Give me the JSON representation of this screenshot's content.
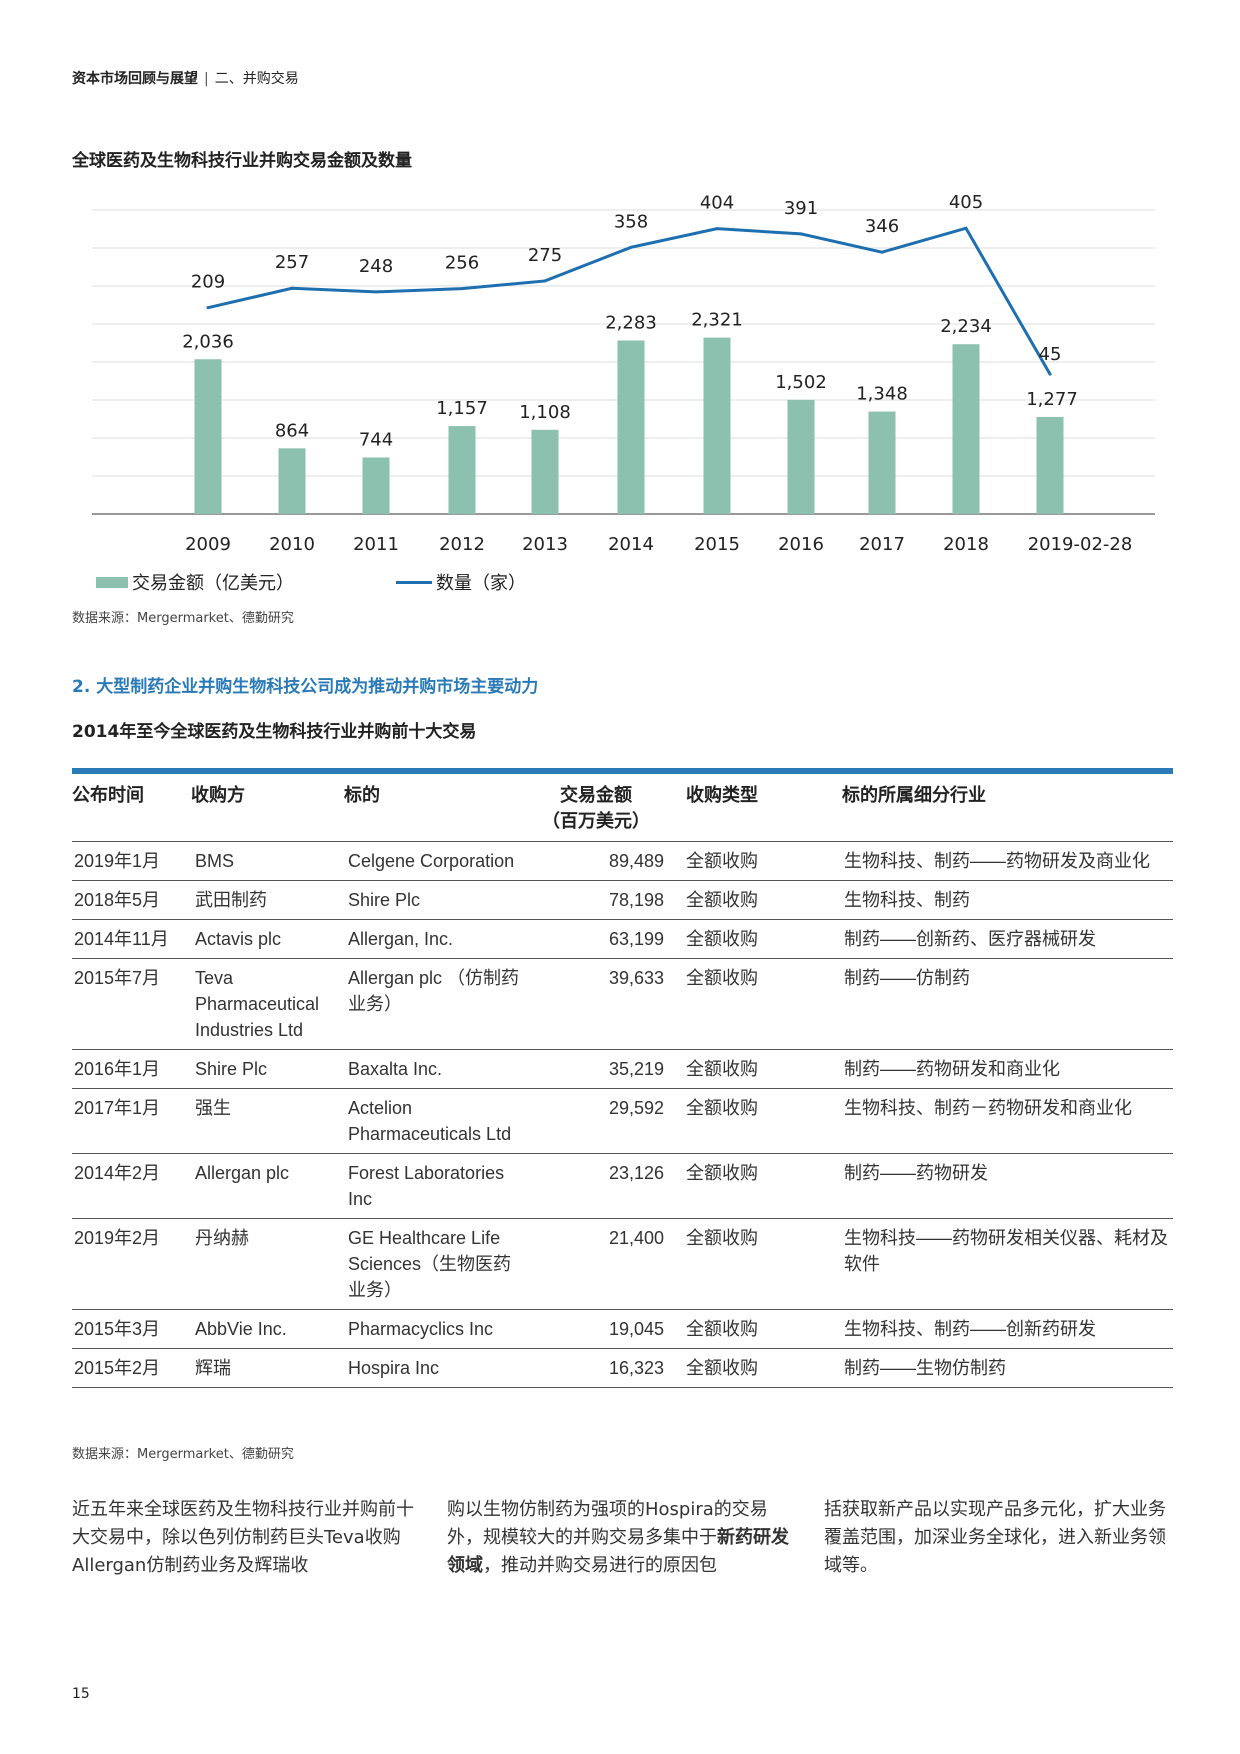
{
  "header": {
    "section": "资本市场回顾与展望",
    "separator": "|",
    "subsection": "二、并购交易"
  },
  "chart_data": {
    "type": "bar+line",
    "title": "全球医药及生物科技行业并购交易金额及数量",
    "categories": [
      "2009",
      "2010",
      "2011",
      "2012",
      "2013",
      "2014",
      "2015",
      "2016",
      "2017",
      "2018",
      "2019-02-28"
    ],
    "series": [
      {
        "name": "交易金额（亿美元）",
        "type": "bar",
        "axis": "left",
        "color": "#8bc1ae",
        "values": [
          2036,
          864,
          744,
          1157,
          1108,
          2283,
          2321,
          1502,
          1348,
          2234,
          1277
        ],
        "labels": [
          "2,036",
          "864",
          "744",
          "1,157",
          "1,108",
          "2,283",
          "2,321",
          "1,502",
          "1,348",
          "2,234",
          "1,277"
        ]
      },
      {
        "name": "数量（家）",
        "type": "line",
        "axis": "right",
        "color": "#1e6fb0",
        "values": [
          209,
          257,
          248,
          256,
          275,
          358,
          404,
          391,
          346,
          405,
          45
        ],
        "labels": [
          "209",
          "257",
          "248",
          "256",
          "275",
          "358",
          "404",
          "391",
          "346",
          "405",
          "45"
        ]
      }
    ],
    "ylim": [
      0,
      4000
    ],
    "y2lim": [
      -300,
      450
    ],
    "grid": true,
    "legend_placement": "bottom-left",
    "source": "数据来源：Mergermarket、德勤研究"
  },
  "section_heading": "2. 大型制药企业并购生物科技公司成为推动并购市场主要动力",
  "table": {
    "title": "2014年至今全球医药及生物科技行业并购前十大交易",
    "headers": [
      "公布时间",
      "收购方",
      "标的",
      "交易金额\n（百万美元）",
      "收购类型",
      "标的所属细分行业"
    ],
    "rows": [
      [
        "2019年1月",
        "BMS",
        "Celgene Corporation",
        "89,489",
        "全额收购",
        "生物科技、制药——药物研发及商业化"
      ],
      [
        "2018年5月",
        "武田制药",
        "Shire Plc",
        "78,198",
        "全额收购",
        "生物科技、制药"
      ],
      [
        "2014年11月",
        "Actavis plc",
        "Allergan, Inc.",
        "63,199",
        "全额收购",
        "制药——创新药、医疗器械研发"
      ],
      [
        "2015年7月",
        "Teva Pharmaceutical Industries Ltd",
        "Allergan plc （仿制药业务）",
        "39,633",
        "全额收购",
        "制药——仿制药"
      ],
      [
        "2016年1月",
        "Shire Plc",
        "Baxalta Inc.",
        "35,219",
        "全额收购",
        "制药——药物研发和商业化"
      ],
      [
        "2017年1月",
        "强生",
        "Actelion Pharmaceuticals Ltd",
        "29,592",
        "全额收购",
        "生物科技、制药－药物研发和商业化"
      ],
      [
        "2014年2月",
        "Allergan plc",
        "Forest Laboratories Inc",
        "23,126",
        "全额收购",
        "制药——药物研发"
      ],
      [
        "2019年2月",
        "丹纳赫",
        "GE Healthcare Life Sciences（生物医药业务）",
        "21,400",
        "全额收购",
        "生物科技——药物研发相关仪器、耗材及软件"
      ],
      [
        "2015年3月",
        "AbbVie Inc.",
        "Pharmacyclics Inc",
        "19,045",
        "全额收购",
        "生物科技、制药——创新药研发"
      ],
      [
        "2015年2月",
        "辉瑞",
        "Hospira Inc",
        "16,323",
        "全额收购",
        "制药——生物仿制药"
      ]
    ],
    "source": "数据来源：Mergermarket、德勤研究"
  },
  "paragraph": {
    "col1": "近五年来全球医药及生物科技行业并购前十大交易中，除以色列仿制药巨头Teva收购Allergan仿制药业务及辉瑞收",
    "col2_a": "购以生物仿制药为强项的Hospira的交易外，规模较大的并购交易多集中于",
    "col2_bold": "新药研发领域",
    "col2_b": "，推动并购交易进行的原因包",
    "col3": "括获取新产品以实现产品多元化，扩大业务覆盖范围，加深业务全球化，进入新业务领域等。"
  },
  "page_number": "15"
}
